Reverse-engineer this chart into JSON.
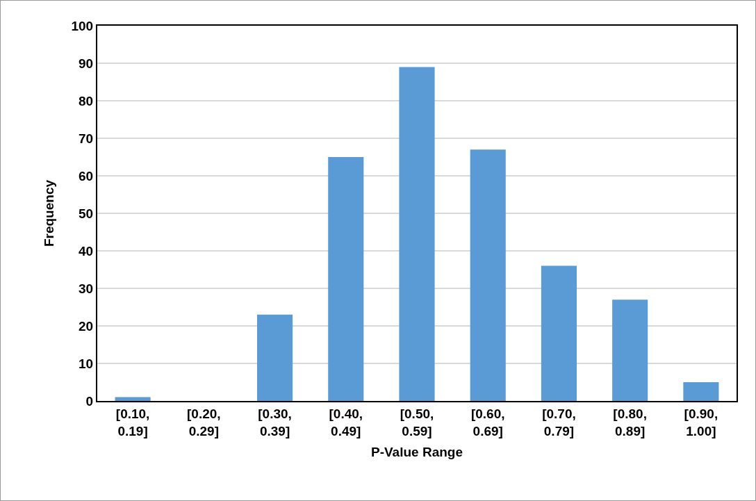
{
  "chart_data": {
    "type": "bar",
    "xlabel": "P-Value Range",
    "ylabel": "Frequency",
    "categories": [
      "[0.10, 0.19]",
      "[0.20, 0.29]",
      "[0.30, 0.39]",
      "[0.40, 0.49]",
      "[0.50, 0.59]",
      "[0.60, 0.69]",
      "[0.70, 0.79]",
      "[0.80, 0.89]",
      "[0.90, 1.00]"
    ],
    "values": [
      1,
      0,
      23,
      65,
      89,
      67,
      36,
      27,
      5
    ],
    "color": "#5b9bd5",
    "ylim": [
      0,
      100
    ],
    "yticks": [
      0,
      10,
      20,
      30,
      40,
      50,
      60,
      70,
      80,
      90,
      100
    ],
    "grid": "y"
  }
}
